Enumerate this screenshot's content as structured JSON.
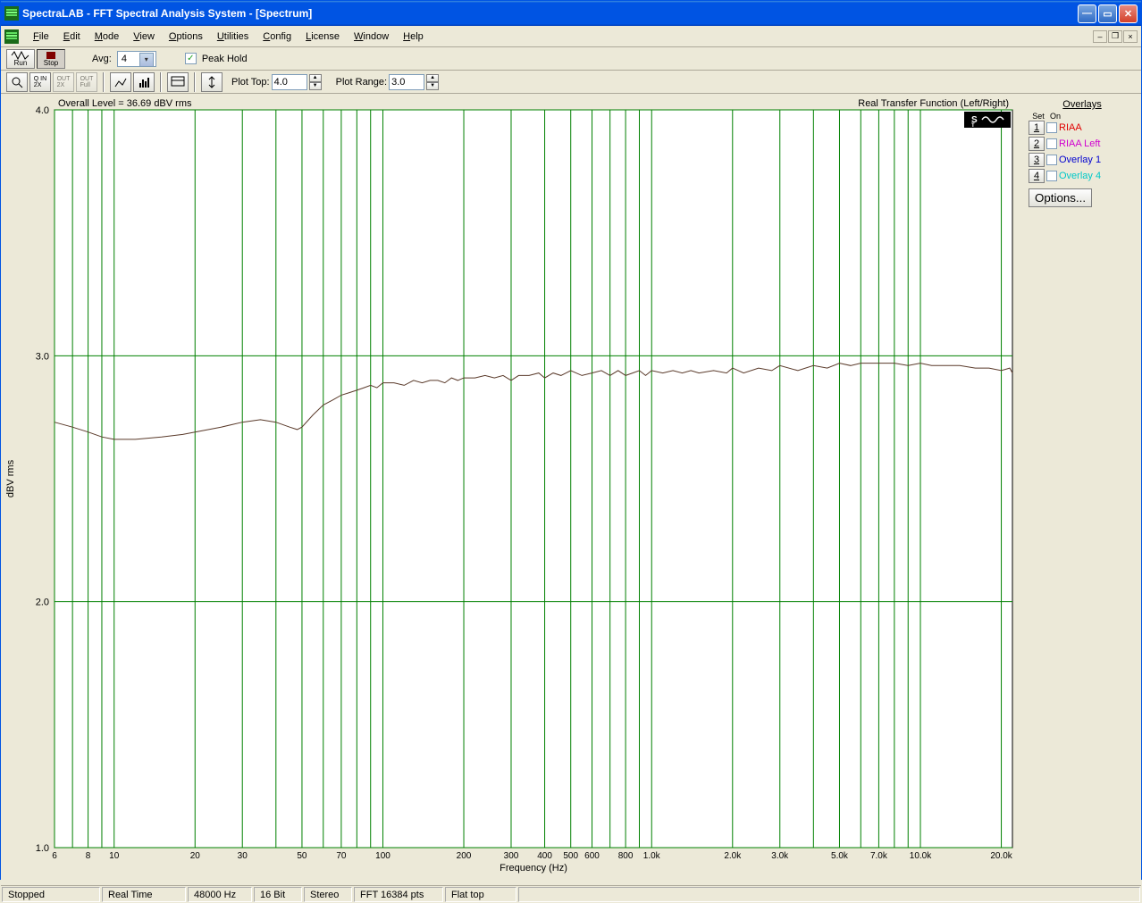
{
  "window": {
    "title": "SpectraLAB - FFT Spectral Analysis System - [Spectrum]"
  },
  "menu": {
    "items": [
      "File",
      "Edit",
      "Mode",
      "View",
      "Options",
      "Utilities",
      "Config",
      "License",
      "Window",
      "Help"
    ]
  },
  "toolbar1": {
    "run_label": "Run",
    "stop_label": "Stop",
    "avg_label": "Avg:",
    "avg_value": "4",
    "peak_hold_label": "Peak Hold",
    "peak_hold_checked": true
  },
  "toolbar2": {
    "plot_top_label": "Plot Top:",
    "plot_top_value": "4.0",
    "plot_range_label": "Plot Range:",
    "plot_range_value": "3.0"
  },
  "plot": {
    "overall_level_text": "Overall Level = 36.69 dBV rms",
    "right_text": "Real Transfer Function (Left/Right)",
    "y_label": "dBV rms",
    "x_label": "Frequency (Hz)",
    "y_min": 1.0,
    "y_max": 4.0,
    "y_ticks": [
      1.0,
      2.0,
      3.0,
      4.0
    ],
    "x_min": 6,
    "x_max": 22000,
    "x_ticks": [
      {
        "v": 6,
        "l": "6"
      },
      {
        "v": 8,
        "l": "8"
      },
      {
        "v": 10,
        "l": "10"
      },
      {
        "v": 20,
        "l": "20"
      },
      {
        "v": 30,
        "l": "30"
      },
      {
        "v": 50,
        "l": "50"
      },
      {
        "v": 70,
        "l": "70"
      },
      {
        "v": 100,
        "l": "100"
      },
      {
        "v": 200,
        "l": "200"
      },
      {
        "v": 300,
        "l": "300"
      },
      {
        "v": 400,
        "l": "400"
      },
      {
        "v": 500,
        "l": "500"
      },
      {
        "v": 600,
        "l": "600"
      },
      {
        "v": 800,
        "l": "800"
      },
      {
        "v": 1000,
        "l": "1.0k"
      },
      {
        "v": 2000,
        "l": "2.0k"
      },
      {
        "v": 3000,
        "l": "3.0k"
      },
      {
        "v": 5000,
        "l": "5.0k"
      },
      {
        "v": 7000,
        "l": "7.0k"
      },
      {
        "v": 10000,
        "l": "10.0k"
      },
      {
        "v": 20000,
        "l": "20.0k"
      }
    ],
    "grid_verticals": [
      6,
      7,
      8,
      9,
      10,
      20,
      30,
      40,
      50,
      60,
      70,
      80,
      90,
      100,
      200,
      300,
      400,
      500,
      600,
      700,
      800,
      900,
      1000,
      2000,
      3000,
      4000,
      5000,
      6000,
      7000,
      8000,
      9000,
      10000,
      20000
    ],
    "background_color": "#ffffff",
    "grid_color": "#008000",
    "axis_text_color": "#000000",
    "trace_color": "#5a3a2a",
    "trace": [
      {
        "x": 6,
        "y": 2.73
      },
      {
        "x": 7,
        "y": 2.71
      },
      {
        "x": 8,
        "y": 2.69
      },
      {
        "x": 9,
        "y": 2.67
      },
      {
        "x": 10,
        "y": 2.66
      },
      {
        "x": 12,
        "y": 2.66
      },
      {
        "x": 15,
        "y": 2.67
      },
      {
        "x": 18,
        "y": 2.68
      },
      {
        "x": 20,
        "y": 2.69
      },
      {
        "x": 25,
        "y": 2.71
      },
      {
        "x": 30,
        "y": 2.73
      },
      {
        "x": 35,
        "y": 2.74
      },
      {
        "x": 40,
        "y": 2.73
      },
      {
        "x": 45,
        "y": 2.71
      },
      {
        "x": 48,
        "y": 2.7
      },
      {
        "x": 50,
        "y": 2.71
      },
      {
        "x": 55,
        "y": 2.76
      },
      {
        "x": 60,
        "y": 2.8
      },
      {
        "x": 65,
        "y": 2.82
      },
      {
        "x": 70,
        "y": 2.84
      },
      {
        "x": 75,
        "y": 2.85
      },
      {
        "x": 80,
        "y": 2.86
      },
      {
        "x": 85,
        "y": 2.87
      },
      {
        "x": 90,
        "y": 2.88
      },
      {
        "x": 95,
        "y": 2.87
      },
      {
        "x": 100,
        "y": 2.89
      },
      {
        "x": 110,
        "y": 2.89
      },
      {
        "x": 120,
        "y": 2.88
      },
      {
        "x": 130,
        "y": 2.9
      },
      {
        "x": 140,
        "y": 2.89
      },
      {
        "x": 150,
        "y": 2.9
      },
      {
        "x": 160,
        "y": 2.9
      },
      {
        "x": 170,
        "y": 2.89
      },
      {
        "x": 180,
        "y": 2.91
      },
      {
        "x": 190,
        "y": 2.9
      },
      {
        "x": 200,
        "y": 2.91
      },
      {
        "x": 220,
        "y": 2.91
      },
      {
        "x": 240,
        "y": 2.92
      },
      {
        "x": 260,
        "y": 2.91
      },
      {
        "x": 280,
        "y": 2.92
      },
      {
        "x": 300,
        "y": 2.9
      },
      {
        "x": 320,
        "y": 2.92
      },
      {
        "x": 350,
        "y": 2.92
      },
      {
        "x": 380,
        "y": 2.93
      },
      {
        "x": 400,
        "y": 2.91
      },
      {
        "x": 430,
        "y": 2.93
      },
      {
        "x": 460,
        "y": 2.92
      },
      {
        "x": 500,
        "y": 2.94
      },
      {
        "x": 550,
        "y": 2.92
      },
      {
        "x": 600,
        "y": 2.93
      },
      {
        "x": 650,
        "y": 2.94
      },
      {
        "x": 700,
        "y": 2.92
      },
      {
        "x": 750,
        "y": 2.94
      },
      {
        "x": 800,
        "y": 2.92
      },
      {
        "x": 850,
        "y": 2.93
      },
      {
        "x": 900,
        "y": 2.94
      },
      {
        "x": 950,
        "y": 2.92
      },
      {
        "x": 1000,
        "y": 2.94
      },
      {
        "x": 1100,
        "y": 2.93
      },
      {
        "x": 1200,
        "y": 2.94
      },
      {
        "x": 1300,
        "y": 2.93
      },
      {
        "x": 1400,
        "y": 2.94
      },
      {
        "x": 1500,
        "y": 2.93
      },
      {
        "x": 1700,
        "y": 2.94
      },
      {
        "x": 1900,
        "y": 2.93
      },
      {
        "x": 2000,
        "y": 2.95
      },
      {
        "x": 2200,
        "y": 2.93
      },
      {
        "x": 2500,
        "y": 2.95
      },
      {
        "x": 2800,
        "y": 2.94
      },
      {
        "x": 3000,
        "y": 2.96
      },
      {
        "x": 3500,
        "y": 2.94
      },
      {
        "x": 4000,
        "y": 2.96
      },
      {
        "x": 4500,
        "y": 2.95
      },
      {
        "x": 5000,
        "y": 2.97
      },
      {
        "x": 5500,
        "y": 2.96
      },
      {
        "x": 6000,
        "y": 2.97
      },
      {
        "x": 7000,
        "y": 2.97
      },
      {
        "x": 8000,
        "y": 2.97
      },
      {
        "x": 9000,
        "y": 2.96
      },
      {
        "x": 10000,
        "y": 2.97
      },
      {
        "x": 11000,
        "y": 2.96
      },
      {
        "x": 12000,
        "y": 2.96
      },
      {
        "x": 14000,
        "y": 2.96
      },
      {
        "x": 16000,
        "y": 2.95
      },
      {
        "x": 18000,
        "y": 2.95
      },
      {
        "x": 20000,
        "y": 2.94
      },
      {
        "x": 21500,
        "y": 2.95
      },
      {
        "x": 22000,
        "y": 2.93
      }
    ]
  },
  "overlays": {
    "title": "Overlays",
    "head_set": "Set",
    "head_on": "On",
    "items": [
      {
        "n": "1",
        "label": "RIAA",
        "color": "#e00000"
      },
      {
        "n": "2",
        "label": "RIAA Left",
        "color": "#d000d0"
      },
      {
        "n": "3",
        "label": "Overlay 1",
        "color": "#0000d0"
      },
      {
        "n": "4",
        "label": "Overlay 4",
        "color": "#00c8c8"
      }
    ],
    "options_label": "Options..."
  },
  "status": {
    "cells": [
      "Stopped",
      "Real Time",
      "48000 Hz",
      "16 Bit",
      "Stereo",
      "FFT 16384 pts",
      "Flat top"
    ]
  }
}
